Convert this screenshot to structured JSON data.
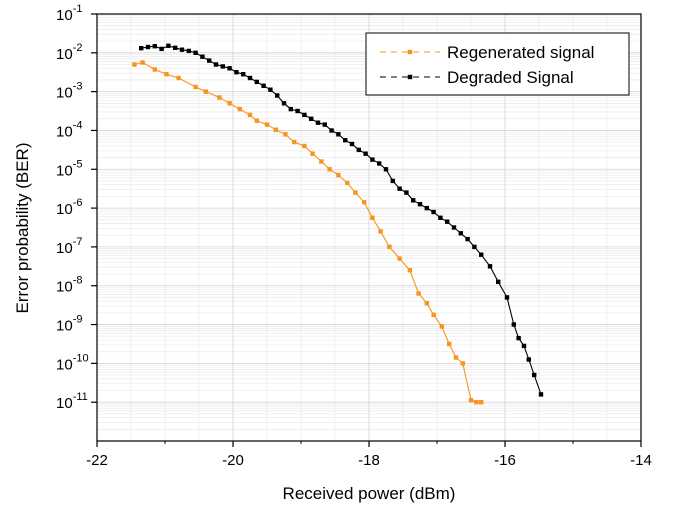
{
  "chart_data": {
    "type": "line",
    "title": "",
    "xlabel": "Received power (dBm)",
    "ylabel": "Error probability (BER)",
    "xlim": [
      -22,
      -14
    ],
    "ylim_log10": [
      -12,
      -1
    ],
    "y_scale": "log",
    "grid": true,
    "legend_position": "top-right",
    "x_ticks": [
      {
        "value": -22,
        "label": "-22"
      },
      {
        "value": -20,
        "label": "-20"
      },
      {
        "value": -18,
        "label": "-18"
      },
      {
        "value": -16,
        "label": "-16"
      },
      {
        "value": -14,
        "label": "-14"
      }
    ],
    "y_ticks": [
      {
        "exp": -1,
        "base": "10",
        "sup": "-1"
      },
      {
        "exp": -2,
        "base": "10",
        "sup": "-2"
      },
      {
        "exp": -3,
        "base": "10",
        "sup": "-3"
      },
      {
        "exp": -4,
        "base": "10",
        "sup": "-4"
      },
      {
        "exp": -5,
        "base": "10",
        "sup": "-5"
      },
      {
        "exp": -6,
        "base": "10",
        "sup": "-6"
      },
      {
        "exp": -7,
        "base": "10",
        "sup": "-7"
      },
      {
        "exp": -8,
        "base": "10",
        "sup": "-8"
      },
      {
        "exp": -9,
        "base": "10",
        "sup": "-9"
      },
      {
        "exp": -10,
        "base": "10",
        "sup": "-10"
      },
      {
        "exp": -11,
        "base": "10",
        "sup": "-11"
      }
    ],
    "series": [
      {
        "name": "Regenerated signal",
        "color": "#F7941D",
        "x": [
          -21.45,
          -21.33,
          -21.15,
          -20.98,
          -20.8,
          -20.55,
          -20.4,
          -20.2,
          -20.05,
          -19.9,
          -19.75,
          -19.65,
          -19.5,
          -19.37,
          -19.23,
          -19.1,
          -18.95,
          -18.83,
          -18.7,
          -18.58,
          -18.45,
          -18.32,
          -18.2,
          -18.07,
          -17.95,
          -17.83,
          -17.7,
          -17.55,
          -17.4,
          -17.27,
          -17.15,
          -17.05,
          -16.93,
          -16.82,
          -16.72,
          -16.62,
          -16.5,
          -16.42,
          -16.35
        ],
        "y_log10": [
          -2.3,
          -2.25,
          -2.43,
          -2.55,
          -2.65,
          -2.88,
          -3.0,
          -3.15,
          -3.3,
          -3.45,
          -3.6,
          -3.75,
          -3.85,
          -3.98,
          -4.1,
          -4.3,
          -4.4,
          -4.6,
          -4.8,
          -5.0,
          -5.15,
          -5.35,
          -5.6,
          -5.85,
          -6.25,
          -6.6,
          -7.0,
          -7.3,
          -7.6,
          -8.2,
          -8.45,
          -8.75,
          -9.05,
          -9.5,
          -9.85,
          -10.0,
          -10.95,
          -11.0,
          -11.0
        ]
      },
      {
        "name": "Degraded Signal",
        "color": "#000000",
        "x": [
          -21.35,
          -21.25,
          -21.15,
          -21.05,
          -20.95,
          -20.85,
          -20.75,
          -20.65,
          -20.55,
          -20.45,
          -20.35,
          -20.25,
          -20.15,
          -20.05,
          -19.95,
          -19.85,
          -19.75,
          -19.65,
          -19.55,
          -19.45,
          -19.35,
          -19.25,
          -19.15,
          -19.05,
          -18.95,
          -18.85,
          -18.75,
          -18.65,
          -18.55,
          -18.45,
          -18.35,
          -18.25,
          -18.15,
          -18.05,
          -17.95,
          -17.85,
          -17.75,
          -17.65,
          -17.55,
          -17.45,
          -17.35,
          -17.25,
          -17.15,
          -17.05,
          -16.95,
          -16.85,
          -16.75,
          -16.65,
          -16.55,
          -16.45,
          -16.35,
          -16.22,
          -16.1,
          -15.97,
          -15.87,
          -15.8,
          -15.72,
          -15.65,
          -15.57,
          -15.47
        ],
        "y_log10": [
          -1.88,
          -1.85,
          -1.83,
          -1.9,
          -1.82,
          -1.87,
          -1.92,
          -1.95,
          -2.0,
          -2.1,
          -2.2,
          -2.3,
          -2.35,
          -2.4,
          -2.5,
          -2.55,
          -2.65,
          -2.75,
          -2.85,
          -2.95,
          -3.1,
          -3.3,
          -3.45,
          -3.5,
          -3.6,
          -3.7,
          -3.8,
          -3.85,
          -4.0,
          -4.1,
          -4.25,
          -4.35,
          -4.5,
          -4.6,
          -4.75,
          -4.85,
          -5.0,
          -5.3,
          -5.5,
          -5.6,
          -5.8,
          -5.9,
          -6.0,
          -6.1,
          -6.25,
          -6.35,
          -6.5,
          -6.65,
          -6.8,
          -7.0,
          -7.2,
          -7.5,
          -7.9,
          -8.3,
          -9.0,
          -9.35,
          -9.55,
          -9.9,
          -10.3,
          -10.8
        ]
      }
    ]
  }
}
